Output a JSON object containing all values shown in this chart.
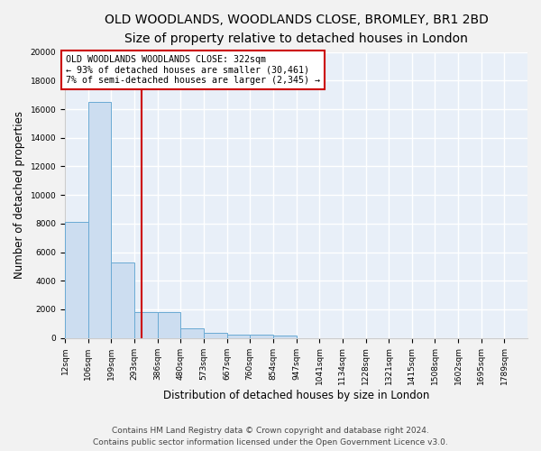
{
  "title1": "OLD WOODLANDS, WOODLANDS CLOSE, BROMLEY, BR1 2BD",
  "title2": "Size of property relative to detached houses in London",
  "xlabel": "Distribution of detached houses by size in London",
  "ylabel": "Number of detached properties",
  "bar_color": "#ccddf0",
  "bar_edge_color": "#6aaad4",
  "vline_color": "#cc0000",
  "vline_x": 322,
  "annotation_text": "OLD WOODLANDS WOODLANDS CLOSE: 322sqm\n← 93% of detached houses are smaller (30,461)\n7% of semi-detached houses are larger (2,345) →",
  "annotation_box_color": "#ffffff",
  "annotation_box_edge": "#cc0000",
  "footer": "Contains HM Land Registry data © Crown copyright and database right 2024.\nContains public sector information licensed under the Open Government Licence v3.0.",
  "bins": [
    12,
    106,
    199,
    293,
    386,
    480,
    573,
    667,
    760,
    854,
    947,
    1041,
    1134,
    1228,
    1321,
    1415,
    1508,
    1602,
    1695,
    1789,
    1882
  ],
  "counts": [
    8100,
    16500,
    5300,
    1800,
    1800,
    700,
    350,
    250,
    200,
    170,
    0,
    0,
    0,
    0,
    0,
    0,
    0,
    0,
    0,
    0
  ],
  "ylim": [
    0,
    20000
  ],
  "yticks": [
    0,
    2000,
    4000,
    6000,
    8000,
    10000,
    12000,
    14000,
    16000,
    18000,
    20000
  ],
  "background_color": "#e8eff8",
  "grid_color": "#ffffff",
  "fig_background": "#f2f2f2",
  "title_fontsize": 10,
  "subtitle_fontsize": 9,
  "tick_label_fontsize": 6.5,
  "ylabel_fontsize": 8.5,
  "xlabel_fontsize": 8.5,
  "footer_fontsize": 6.5
}
